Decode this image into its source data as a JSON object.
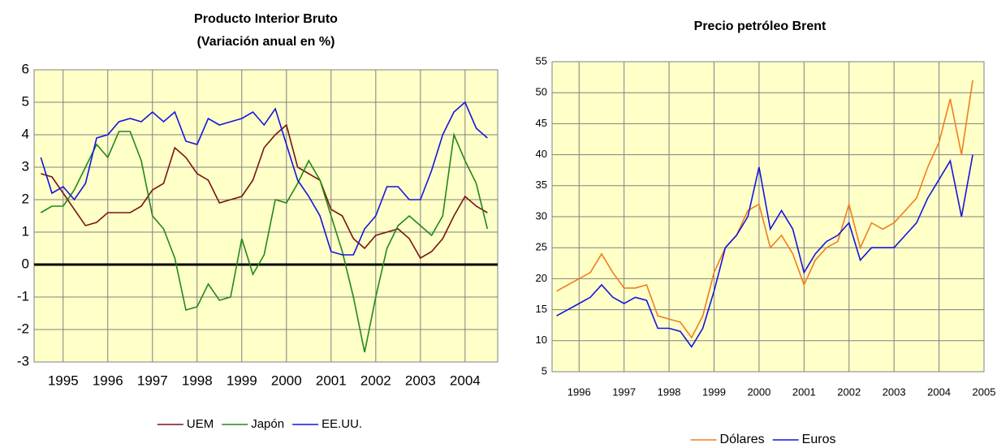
{
  "chart_data": [
    {
      "type": "line",
      "title": "Producto Interior Bruto",
      "subtitle": "(Variación anual en %)",
      "x": [
        1995,
        1995.25,
        1995.5,
        1995.75,
        1996,
        1996.25,
        1996.5,
        1996.75,
        1997,
        1997.25,
        1997.5,
        1997.75,
        1998,
        1998.25,
        1998.5,
        1998.75,
        1999,
        1999.25,
        1999.5,
        1999.75,
        2000,
        2000.25,
        2000.5,
        2000.75,
        2001,
        2001.25,
        2001.5,
        2001.75,
        2002,
        2002.25,
        2002.5,
        2002.75,
        2003,
        2003.25,
        2003.5,
        2003.75,
        2004,
        2004.25,
        2004.5,
        2004.75,
        2005
      ],
      "series": [
        {
          "name": "UEM",
          "color": "#7a1414",
          "values": [
            2.8,
            2.7,
            2.2,
            1.7,
            1.2,
            1.3,
            1.6,
            1.6,
            1.6,
            1.8,
            2.3,
            2.5,
            3.6,
            3.3,
            2.8,
            2.6,
            1.9,
            2.0,
            2.1,
            2.6,
            3.6,
            4.0,
            4.3,
            3.0,
            2.8,
            2.6,
            1.7,
            1.5,
            0.8,
            0.5,
            0.9,
            1.0,
            1.1,
            0.8,
            0.2,
            0.4,
            0.8,
            1.5,
            2.1,
            1.8,
            1.6
          ]
        },
        {
          "name": "Japón",
          "color": "#22881a",
          "values": [
            1.6,
            1.8,
            1.8,
            2.3,
            3.0,
            3.7,
            3.3,
            4.1,
            4.1,
            3.2,
            1.5,
            1.1,
            0.2,
            -1.4,
            -1.3,
            -0.6,
            -1.1,
            -1.0,
            0.8,
            -0.3,
            0.3,
            2.0,
            1.9,
            2.5,
            3.2,
            2.6,
            1.5,
            0.4,
            -1.0,
            -2.7,
            -1.0,
            0.5,
            1.2,
            1.5,
            1.2,
            0.9,
            1.5,
            4.0,
            3.2,
            2.5,
            1.1
          ]
        },
        {
          "name": "EE.UU.",
          "color": "#1414e0",
          "values": [
            3.3,
            2.2,
            2.4,
            2.0,
            2.5,
            3.9,
            4.0,
            4.4,
            4.5,
            4.4,
            4.7,
            4.4,
            4.7,
            3.8,
            3.7,
            4.5,
            4.3,
            4.4,
            4.5,
            4.7,
            4.3,
            4.8,
            3.7,
            2.6,
            2.1,
            1.5,
            0.4,
            0.3,
            0.3,
            1.1,
            1.5,
            2.4,
            2.4,
            2.0,
            2.0,
            2.9,
            4.0,
            4.7,
            5.0,
            4.2,
            3.9
          ]
        }
      ],
      "xlim": [
        1994.85,
        2005.23
      ],
      "xticks": [
        {
          "value": 1995.5,
          "label": "1995"
        },
        {
          "value": 1996.5,
          "label": "1996"
        },
        {
          "value": 1997.5,
          "label": "1997"
        },
        {
          "value": 1998.5,
          "label": "1998"
        },
        {
          "value": 1999.5,
          "label": "1999"
        },
        {
          "value": 2000.5,
          "label": "2000"
        },
        {
          "value": 2001.5,
          "label": "2001"
        },
        {
          "value": 2002.5,
          "label": "2002"
        },
        {
          "value": 2003.5,
          "label": "2003"
        },
        {
          "value": 2004.5,
          "label": "2004"
        }
      ],
      "ylim": [
        -3,
        6
      ],
      "yticks": [
        -3,
        -2,
        -1,
        0,
        1,
        2,
        3,
        4,
        5,
        6
      ],
      "grid": true,
      "legend": "bottom"
    },
    {
      "type": "line",
      "title": "Precio petróleo Brent",
      "x": [
        1996,
        1996.25,
        1996.5,
        1996.75,
        1997,
        1997.25,
        1997.5,
        1997.75,
        1998,
        1998.25,
        1998.5,
        1998.75,
        1999,
        1999.25,
        1999.5,
        1999.75,
        2000,
        2000.25,
        2000.5,
        2000.75,
        2001,
        2001.25,
        2001.5,
        2001.75,
        2002,
        2002.25,
        2002.5,
        2002.75,
        2003,
        2003.25,
        2003.5,
        2003.75,
        2004,
        2004.25,
        2004.5,
        2004.75,
        2005,
        2005.25
      ],
      "series": [
        {
          "name": "Dólares",
          "color": "#f07e1e",
          "values": [
            18,
            19,
            20,
            21,
            24,
            21,
            18.5,
            18.5,
            19,
            14,
            13.5,
            13,
            10.5,
            14,
            21,
            25,
            27,
            31,
            32,
            25,
            27,
            24,
            19,
            23,
            25,
            26,
            32,
            25,
            29,
            28,
            29,
            31,
            33,
            38,
            42,
            49,
            40,
            52
          ]
        },
        {
          "name": "Euros",
          "color": "#1414e0",
          "values": [
            14,
            15,
            16,
            17,
            19,
            17,
            16,
            17,
            16.5,
            12,
            12,
            11.5,
            9,
            12,
            18,
            25,
            27,
            30,
            38,
            28,
            31,
            28,
            21,
            24,
            26,
            27,
            29,
            23,
            25,
            25,
            25,
            27,
            29,
            33,
            36,
            39,
            30,
            40
          ]
        }
      ],
      "xlim": [
        1995.9,
        2005.5
      ],
      "xticks": [
        {
          "value": 1996.5,
          "label": "1996"
        },
        {
          "value": 1997.5,
          "label": "1997"
        },
        {
          "value": 1998.5,
          "label": "1998"
        },
        {
          "value": 1999.5,
          "label": "1999"
        },
        {
          "value": 2000.5,
          "label": "2000"
        },
        {
          "value": 2001.5,
          "label": "2001"
        },
        {
          "value": 2002.5,
          "label": "2002"
        },
        {
          "value": 2003.5,
          "label": "2003"
        },
        {
          "value": 2004.5,
          "label": "2004"
        },
        {
          "value": 2005.5,
          "label": "2005"
        }
      ],
      "ylim": [
        5,
        55
      ],
      "yticks": [
        5,
        10,
        15,
        20,
        25,
        30,
        35,
        40,
        45,
        50,
        55
      ],
      "grid": true,
      "legend": "bottom"
    }
  ]
}
